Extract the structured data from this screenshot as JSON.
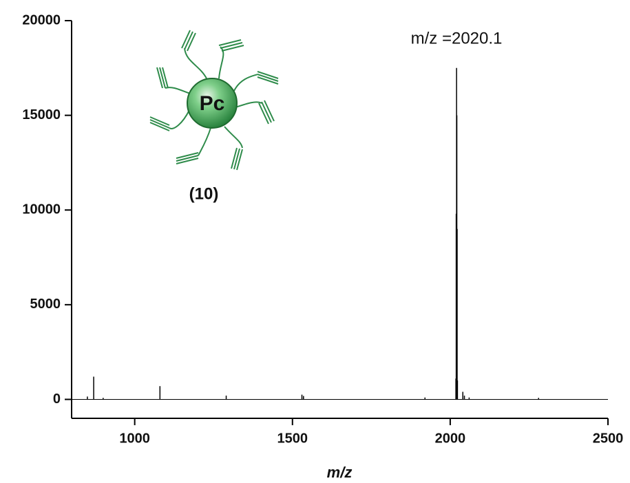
{
  "chart_data": {
    "type": "stem",
    "x_label": "m/z",
    "annotations": [
      "m/z =2020.1",
      "(10)",
      "Pc"
    ],
    "color": "#000000",
    "x": [
      850,
      870,
      900,
      1080,
      1290,
      1530,
      1535,
      1920,
      2018,
      2019,
      2020.1,
      2021,
      2022,
      2023,
      2040,
      2045,
      2060,
      2280
    ],
    "values": [
      150,
      1200,
      80,
      700,
      200,
      250,
      180,
      100,
      1100,
      9800,
      17500,
      15000,
      9000,
      1000,
      400,
      200,
      100,
      80
    ],
    "xlim": [
      800,
      2500
    ],
    "ylim": [
      -1000,
      20000
    ],
    "xticks": [
      1000,
      1500,
      2000,
      2500
    ],
    "yticks": [
      0,
      5000,
      10000,
      15000,
      20000
    ]
  }
}
